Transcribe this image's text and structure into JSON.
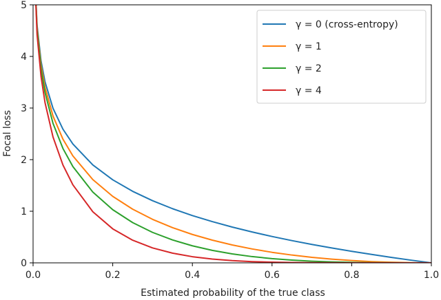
{
  "chart_data": {
    "type": "line",
    "xlabel": "Estimated probability of the true class",
    "ylabel": "Focal loss",
    "xlim": [
      0,
      1
    ],
    "ylim": [
      0,
      5
    ],
    "x_ticks": [
      "0.0",
      "0.2",
      "0.4",
      "0.6",
      "0.8",
      "1.0"
    ],
    "y_ticks": [
      "0",
      "1",
      "2",
      "3",
      "4",
      "5"
    ],
    "grid": false,
    "legend_position": "top-right",
    "x": [
      0.01,
      0.02,
      0.03,
      0.05,
      0.075,
      0.1,
      0.15,
      0.2,
      0.25,
      0.3,
      0.35,
      0.4,
      0.45,
      0.5,
      0.55,
      0.6,
      0.65,
      0.7,
      0.75,
      0.8,
      0.85,
      0.9,
      0.95,
      1.0
    ],
    "series": [
      {
        "name": "γ = 0 (cross-entropy)",
        "color": "#1f77b4",
        "values": [
          4.605,
          3.912,
          3.507,
          2.996,
          2.59,
          2.303,
          1.897,
          1.609,
          1.386,
          1.204,
          1.05,
          0.916,
          0.799,
          0.693,
          0.598,
          0.511,
          0.431,
          0.357,
          0.288,
          0.223,
          0.163,
          0.105,
          0.051,
          0.0
        ]
      },
      {
        "name": "γ = 1",
        "color": "#ff7f0e",
        "values": [
          4.559,
          3.834,
          3.402,
          2.846,
          2.396,
          2.072,
          1.613,
          1.288,
          1.04,
          0.843,
          0.683,
          0.55,
          0.44,
          0.347,
          0.269,
          0.204,
          0.151,
          0.107,
          0.072,
          0.045,
          0.024,
          0.011,
          0.003,
          0.0
        ]
      },
      {
        "name": "γ = 2",
        "color": "#2ca02c",
        "values": [
          4.514,
          3.757,
          3.3,
          2.704,
          2.216,
          1.865,
          1.371,
          1.03,
          0.78,
          0.59,
          0.444,
          0.33,
          0.242,
          0.173,
          0.121,
          0.082,
          0.053,
          0.032,
          0.018,
          0.009,
          0.004,
          0.001,
          0.0001,
          0.0
        ]
      },
      {
        "name": "γ = 4",
        "color": "#d62728",
        "values": [
          4.424,
          3.609,
          3.105,
          2.44,
          1.896,
          1.511,
          0.99,
          0.659,
          0.439,
          0.289,
          0.188,
          0.119,
          0.073,
          0.043,
          0.024,
          0.013,
          0.006,
          0.003,
          0.001,
          0.0004,
          0.0001,
          0.0,
          0.0,
          0.0
        ]
      }
    ]
  }
}
